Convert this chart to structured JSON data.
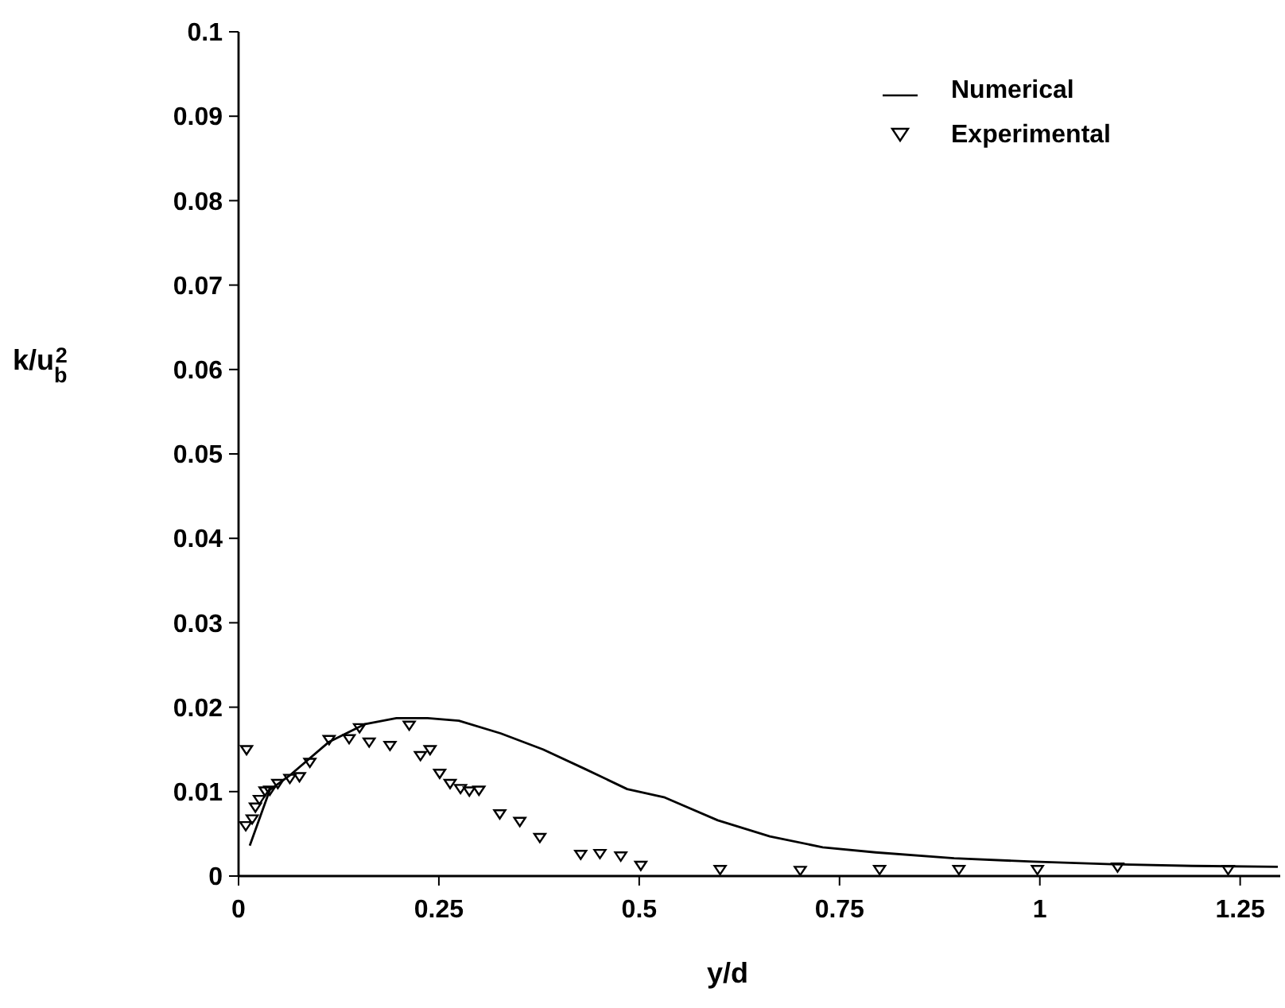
{
  "chart_data": {
    "type": "line",
    "xlabel": "y/d",
    "ylabel": "k/u$_{b}$$^{2}$",
    "xlim": [
      0,
      1.3
    ],
    "ylim": [
      0,
      0.1
    ],
    "xticks": [
      0,
      0.25,
      0.5,
      0.75,
      1,
      1.25
    ],
    "yticks": [
      0,
      0.01,
      0.02,
      0.03,
      0.04,
      0.05,
      0.06,
      0.07,
      0.08,
      0.09,
      0.1
    ],
    "grid": false,
    "legend": "top right",
    "series": [
      {
        "name": "Numerical",
        "color": "#000000",
        "marker": "none",
        "line_style": "solid",
        "x": [
          0.014,
          0.039,
          0.065,
          0.113,
          0.158,
          0.197,
          0.236,
          0.275,
          0.327,
          0.38,
          0.432,
          0.485,
          0.532,
          0.598,
          0.663,
          0.729,
          0.795,
          0.893,
          0.992,
          1.09,
          1.19,
          1.297
        ],
        "values": [
          0.0036,
          0.0102,
          0.012,
          0.0159,
          0.018,
          0.0187,
          0.0187,
          0.0184,
          0.0169,
          0.015,
          0.0127,
          0.0103,
          0.0093,
          0.0066,
          0.0047,
          0.0034,
          0.0028,
          0.0021,
          0.0017,
          0.0014,
          0.0012,
          0.0011
        ]
      },
      {
        "name": "Experimental",
        "type": "scatter",
        "color": "#000000",
        "marker": "triangle",
        "x": [
          0.01,
          0.009,
          0.017,
          0.021,
          0.026,
          0.033,
          0.039,
          0.049,
          0.064,
          0.076,
          0.089,
          0.113,
          0.138,
          0.151,
          0.163,
          0.189,
          0.213,
          0.227,
          0.239,
          0.251,
          0.264,
          0.277,
          0.288,
          0.3,
          0.326,
          0.351,
          0.376,
          0.427,
          0.451,
          0.477,
          0.502,
          0.601,
          0.701,
          0.8,
          0.899,
          0.997,
          1.097,
          1.235
        ],
        "values": [
          0.015,
          0.006,
          0.0068,
          0.0082,
          0.0091,
          0.0101,
          0.0102,
          0.011,
          0.0116,
          0.0118,
          0.0135,
          0.0162,
          0.0163,
          0.0176,
          0.0159,
          0.0155,
          0.0179,
          0.0143,
          0.015,
          0.0122,
          0.011,
          0.0104,
          0.0101,
          0.0102,
          0.0074,
          0.0065,
          0.0046,
          0.0026,
          0.0027,
          0.0024,
          0.0013,
          0.0008,
          0.0007,
          0.0008,
          0.0008,
          0.0008,
          0.0011,
          0.0008
        ]
      }
    ]
  }
}
